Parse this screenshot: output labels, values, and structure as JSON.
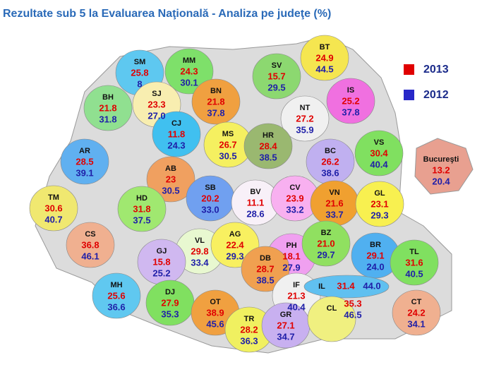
{
  "title": "Rezultate sub 5 la Evaluarea Naţională - Analiza pe judeţe (%)",
  "legend": [
    "2013",
    "2012"
  ],
  "counties": [
    {
      "code": "SM",
      "y2013": "25.8",
      "y2012": "8"
    },
    {
      "code": "MM",
      "y2013": "24.3",
      "y2012": "30.1"
    },
    {
      "code": "SV",
      "y2013": "15.7",
      "y2012": "29.5"
    },
    {
      "code": "BT",
      "y2013": "24.9",
      "y2012": "44.5"
    },
    {
      "code": "BH",
      "y2013": "21.8",
      "y2012": "31.8"
    },
    {
      "code": "SJ",
      "y2013": "23.3",
      "y2012": "27.0"
    },
    {
      "code": "BN",
      "y2013": "21.8",
      "y2012": "37.8"
    },
    {
      "code": "IS",
      "y2013": "25.2",
      "y2012": "37.8"
    },
    {
      "code": "CJ",
      "y2013": "11.8",
      "y2012": "24.3"
    },
    {
      "code": "NT",
      "y2013": "27.2",
      "y2012": "35.9"
    },
    {
      "code": "MS",
      "y2013": "26.7",
      "y2012": "30.5"
    },
    {
      "code": "HR",
      "y2013": "28.4",
      "y2012": "38.5"
    },
    {
      "code": "BC",
      "y2013": "26.2",
      "y2012": "38.6"
    },
    {
      "code": "VS",
      "y2013": "30.4",
      "y2012": "40.4"
    },
    {
      "code": "AR",
      "y2013": "28.5",
      "y2012": "39.1"
    },
    {
      "code": "AB",
      "y2013": "23",
      "y2012": "30.5"
    },
    {
      "code": "Bucureşti",
      "y2013": "13.2",
      "y2012": "20.4"
    },
    {
      "code": "SB",
      "y2013": "20.2",
      "y2012": "33.0"
    },
    {
      "code": "BV",
      "y2013": "11.1",
      "y2012": "28.6"
    },
    {
      "code": "CV",
      "y2013": "23.9",
      "y2012": "33.2"
    },
    {
      "code": "VN",
      "y2013": "21.6",
      "y2012": "33.7"
    },
    {
      "code": "GL",
      "y2013": "23.1",
      "y2012": "29.3"
    },
    {
      "code": "TM",
      "y2013": "30.6",
      "y2012": "40.7"
    },
    {
      "code": "HD",
      "y2013": "31.8",
      "y2012": "37.5"
    },
    {
      "code": "CS",
      "y2013": "36.8",
      "y2012": "46.1"
    },
    {
      "code": "VL",
      "y2013": "29.8",
      "y2012": "33.4"
    },
    {
      "code": "AG",
      "y2013": "22.4",
      "y2012": "29.3"
    },
    {
      "code": "PH",
      "y2013": "18.1",
      "y2012": "27.9"
    },
    {
      "code": "BZ",
      "y2013": "21.0",
      "y2012": "29.7"
    },
    {
      "code": "BR",
      "y2013": "29.1",
      "y2012": "24.0"
    },
    {
      "code": "TL",
      "y2013": "31.6",
      "y2012": "40.5"
    },
    {
      "code": "GJ",
      "y2013": "15.8",
      "y2012": "25.2"
    },
    {
      "code": "DB",
      "y2013": "28.7",
      "y2012": "38.5"
    },
    {
      "code": "IF",
      "y2013": "21.3",
      "y2012": "40.4"
    },
    {
      "code": "IL",
      "y2013": "31.4",
      "y2012": "44.0"
    },
    {
      "code": "MH",
      "y2013": "25.6",
      "y2012": "36.6"
    },
    {
      "code": "DJ",
      "y2013": "27.9",
      "y2012": "35.3"
    },
    {
      "code": "OT",
      "y2013": "38.9",
      "y2012": "45.6"
    },
    {
      "code": "TR",
      "y2013": "28.2",
      "y2012": "36.3"
    },
    {
      "code": "GR",
      "y2013": "27.1",
      "y2012": "34.7"
    },
    {
      "code": "CL",
      "y2013": "35.3",
      "y2012": "46.5"
    },
    {
      "code": "CT",
      "y2013": "24.2",
      "y2012": "34.1"
    }
  ]
}
